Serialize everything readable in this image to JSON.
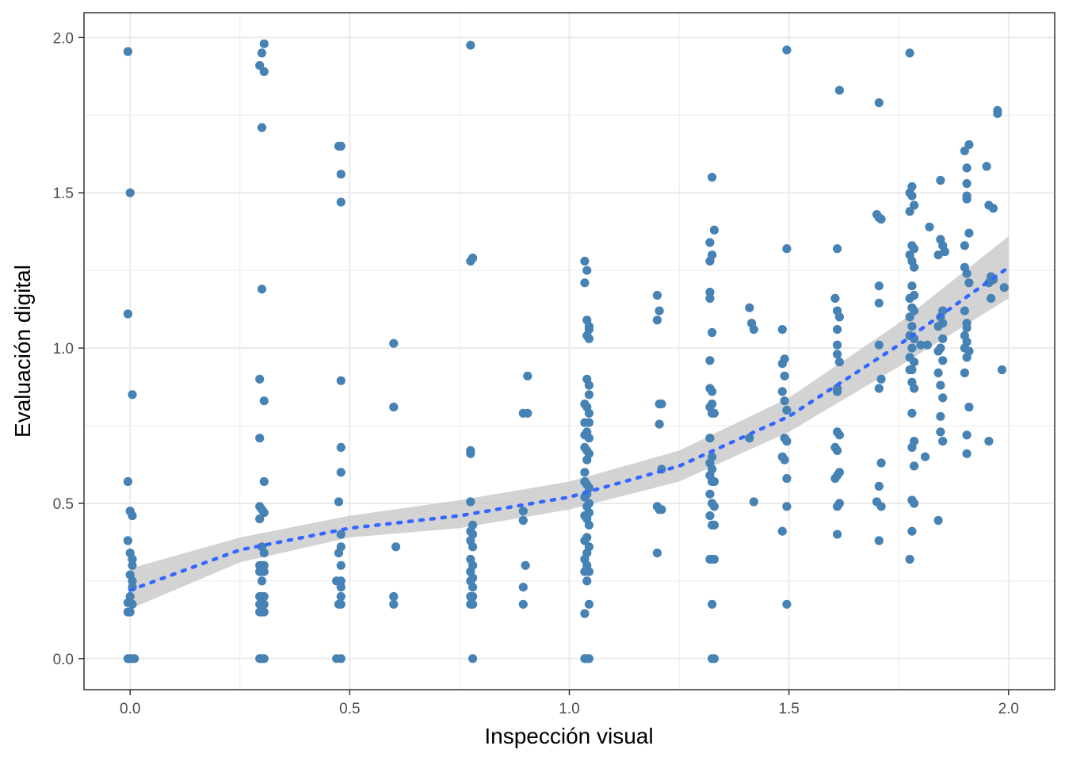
{
  "chart_data": {
    "type": "scatter",
    "xlabel": "Inspección visual",
    "ylabel": "Evaluación digital",
    "xlim": [
      -0.105,
      2.105
    ],
    "ylim": [
      -0.1,
      2.08
    ],
    "x_ticks": [
      "0.0",
      "0.5",
      "1.0",
      "1.5",
      "2.0"
    ],
    "y_ticks": [
      "0.0",
      "0.5",
      "1.0",
      "1.5",
      "2.0"
    ],
    "grid": true,
    "legend": "none",
    "colors": {
      "points": "#4682b4",
      "trend": "#3366ff",
      "band": "#c8c8c8",
      "grid": "#ebebeb",
      "frame": "#333333"
    },
    "trend": {
      "style": "dotted smooth",
      "x": [
        0.0,
        0.25,
        0.5,
        0.75,
        1.0,
        1.25,
        1.5,
        1.75,
        2.0
      ],
      "y": [
        0.22,
        0.35,
        0.42,
        0.46,
        0.52,
        0.62,
        0.78,
        1.01,
        1.26
      ],
      "lower": [
        0.16,
        0.31,
        0.39,
        0.42,
        0.48,
        0.57,
        0.73,
        0.94,
        1.16
      ],
      "upper": [
        0.29,
        0.39,
        0.46,
        0.51,
        0.57,
        0.67,
        0.84,
        1.08,
        1.36
      ]
    },
    "points": [
      [
        -0.005,
        1.955
      ],
      [
        0.0,
        1.5
      ],
      [
        -0.005,
        1.11
      ],
      [
        0.005,
        0.85
      ],
      [
        -0.005,
        0.57
      ],
      [
        0.0,
        0.475
      ],
      [
        0.005,
        0.46
      ],
      [
        -0.005,
        0.38
      ],
      [
        0.0,
        0.34
      ],
      [
        0.005,
        0.32
      ],
      [
        0.005,
        0.3
      ],
      [
        0.0,
        0.27
      ],
      [
        0.005,
        0.25
      ],
      [
        0.005,
        0.23
      ],
      [
        0.0,
        0.2
      ],
      [
        -0.005,
        0.18
      ],
      [
        0.005,
        0.175
      ],
      [
        0.0,
        0.15
      ],
      [
        -0.005,
        0.15
      ],
      [
        -0.005,
        0.0
      ],
      [
        0.0,
        0.0
      ],
      [
        0.005,
        0.0
      ],
      [
        0.01,
        0.0
      ],
      [
        0.305,
        1.98
      ],
      [
        0.3,
        1.95
      ],
      [
        0.295,
        1.91
      ],
      [
        0.305,
        1.89
      ],
      [
        0.3,
        1.71
      ],
      [
        0.3,
        1.19
      ],
      [
        0.295,
        0.9
      ],
      [
        0.305,
        0.83
      ],
      [
        0.295,
        0.71
      ],
      [
        0.305,
        0.57
      ],
      [
        0.295,
        0.49
      ],
      [
        0.3,
        0.48
      ],
      [
        0.305,
        0.47
      ],
      [
        0.295,
        0.45
      ],
      [
        0.3,
        0.36
      ],
      [
        0.305,
        0.34
      ],
      [
        0.295,
        0.3
      ],
      [
        0.3,
        0.3
      ],
      [
        0.305,
        0.3
      ],
      [
        0.295,
        0.28
      ],
      [
        0.3,
        0.28
      ],
      [
        0.305,
        0.28
      ],
      [
        0.3,
        0.25
      ],
      [
        0.295,
        0.2
      ],
      [
        0.3,
        0.2
      ],
      [
        0.305,
        0.2
      ],
      [
        0.295,
        0.175
      ],
      [
        0.3,
        0.175
      ],
      [
        0.305,
        0.175
      ],
      [
        0.295,
        0.15
      ],
      [
        0.3,
        0.15
      ],
      [
        0.305,
        0.15
      ],
      [
        0.295,
        0.0
      ],
      [
        0.3,
        0.0
      ],
      [
        0.305,
        0.0
      ],
      [
        0.475,
        1.65
      ],
      [
        0.48,
        1.65
      ],
      [
        0.48,
        1.56
      ],
      [
        0.48,
        1.47
      ],
      [
        0.48,
        0.895
      ],
      [
        0.48,
        0.68
      ],
      [
        0.48,
        0.6
      ],
      [
        0.475,
        0.505
      ],
      [
        0.48,
        0.4
      ],
      [
        0.48,
        0.36
      ],
      [
        0.475,
        0.34
      ],
      [
        0.48,
        0.3
      ],
      [
        0.47,
        0.25
      ],
      [
        0.48,
        0.25
      ],
      [
        0.48,
        0.23
      ],
      [
        0.48,
        0.2
      ],
      [
        0.475,
        0.175
      ],
      [
        0.48,
        0.175
      ],
      [
        0.47,
        0.0
      ],
      [
        0.48,
        0.0
      ],
      [
        0.6,
        1.015
      ],
      [
        0.6,
        0.81
      ],
      [
        0.605,
        0.36
      ],
      [
        0.6,
        0.2
      ],
      [
        0.6,
        0.175
      ],
      [
        0.775,
        1.975
      ],
      [
        0.78,
        1.29
      ],
      [
        0.775,
        1.28
      ],
      [
        0.775,
        0.67
      ],
      [
        0.775,
        0.66
      ],
      [
        0.775,
        0.505
      ],
      [
        0.78,
        0.43
      ],
      [
        0.775,
        0.41
      ],
      [
        0.78,
        0.4
      ],
      [
        0.775,
        0.38
      ],
      [
        0.78,
        0.36
      ],
      [
        0.775,
        0.32
      ],
      [
        0.78,
        0.3
      ],
      [
        0.775,
        0.28
      ],
      [
        0.78,
        0.26
      ],
      [
        0.775,
        0.25
      ],
      [
        0.78,
        0.23
      ],
      [
        0.775,
        0.2
      ],
      [
        0.78,
        0.2
      ],
      [
        0.775,
        0.175
      ],
      [
        0.78,
        0.175
      ],
      [
        0.78,
        0.0
      ],
      [
        0.905,
        0.91
      ],
      [
        0.895,
        0.79
      ],
      [
        0.905,
        0.79
      ],
      [
        0.895,
        0.475
      ],
      [
        0.895,
        0.445
      ],
      [
        0.9,
        0.3
      ],
      [
        0.895,
        0.23
      ],
      [
        0.895,
        0.175
      ],
      [
        1.035,
        1.28
      ],
      [
        1.04,
        1.25
      ],
      [
        1.035,
        1.21
      ],
      [
        1.04,
        1.09
      ],
      [
        1.045,
        1.07
      ],
      [
        1.045,
        1.06
      ],
      [
        1.04,
        1.04
      ],
      [
        1.045,
        1.03
      ],
      [
        1.04,
        0.9
      ],
      [
        1.045,
        0.88
      ],
      [
        1.045,
        0.85
      ],
      [
        1.035,
        0.82
      ],
      [
        1.04,
        0.81
      ],
      [
        1.045,
        0.79
      ],
      [
        1.035,
        0.76
      ],
      [
        1.045,
        0.76
      ],
      [
        1.04,
        0.73
      ],
      [
        1.035,
        0.72
      ],
      [
        1.045,
        0.71
      ],
      [
        1.035,
        0.68
      ],
      [
        1.04,
        0.67
      ],
      [
        1.045,
        0.66
      ],
      [
        1.04,
        0.64
      ],
      [
        1.035,
        0.6
      ],
      [
        1.035,
        0.57
      ],
      [
        1.04,
        0.56
      ],
      [
        1.045,
        0.55
      ],
      [
        1.04,
        0.53
      ],
      [
        1.035,
        0.52
      ],
      [
        1.045,
        0.5
      ],
      [
        1.04,
        0.49
      ],
      [
        1.045,
        0.47
      ],
      [
        1.035,
        0.46
      ],
      [
        1.04,
        0.45
      ],
      [
        1.045,
        0.43
      ],
      [
        1.04,
        0.39
      ],
      [
        1.035,
        0.38
      ],
      [
        1.045,
        0.36
      ],
      [
        1.04,
        0.34
      ],
      [
        1.035,
        0.32
      ],
      [
        1.04,
        0.3
      ],
      [
        1.035,
        0.28
      ],
      [
        1.045,
        0.28
      ],
      [
        1.04,
        0.25
      ],
      [
        1.045,
        0.175
      ],
      [
        1.035,
        0.145
      ],
      [
        1.035,
        0.0
      ],
      [
        1.04,
        0.0
      ],
      [
        1.045,
        0.0
      ],
      [
        1.2,
        1.17
      ],
      [
        1.205,
        1.12
      ],
      [
        1.2,
        1.09
      ],
      [
        1.205,
        0.82
      ],
      [
        1.21,
        0.82
      ],
      [
        1.205,
        0.755
      ],
      [
        1.21,
        0.61
      ],
      [
        1.2,
        0.49
      ],
      [
        1.205,
        0.48
      ],
      [
        1.21,
        0.48
      ],
      [
        1.2,
        0.34
      ],
      [
        1.325,
        1.55
      ],
      [
        1.33,
        1.38
      ],
      [
        1.32,
        1.34
      ],
      [
        1.325,
        1.3
      ],
      [
        1.32,
        1.28
      ],
      [
        1.32,
        1.18
      ],
      [
        1.32,
        1.16
      ],
      [
        1.325,
        1.05
      ],
      [
        1.32,
        0.96
      ],
      [
        1.32,
        0.87
      ],
      [
        1.325,
        0.86
      ],
      [
        1.325,
        0.82
      ],
      [
        1.32,
        0.81
      ],
      [
        1.33,
        0.79
      ],
      [
        1.325,
        0.79
      ],
      [
        1.32,
        0.71
      ],
      [
        1.325,
        0.65
      ],
      [
        1.32,
        0.63
      ],
      [
        1.325,
        0.61
      ],
      [
        1.32,
        0.59
      ],
      [
        1.325,
        0.57
      ],
      [
        1.33,
        0.57
      ],
      [
        1.32,
        0.53
      ],
      [
        1.325,
        0.5
      ],
      [
        1.33,
        0.49
      ],
      [
        1.32,
        0.46
      ],
      [
        1.325,
        0.43
      ],
      [
        1.33,
        0.43
      ],
      [
        1.32,
        0.32
      ],
      [
        1.325,
        0.32
      ],
      [
        1.33,
        0.32
      ],
      [
        1.325,
        0.175
      ],
      [
        1.325,
        0.0
      ],
      [
        1.33,
        0.0
      ],
      [
        1.41,
        1.13
      ],
      [
        1.415,
        1.08
      ],
      [
        1.42,
        1.06
      ],
      [
        1.41,
        0.71
      ],
      [
        1.42,
        0.505
      ],
      [
        1.485,
        1.06
      ],
      [
        1.49,
        0.965
      ],
      [
        1.485,
        0.95
      ],
      [
        1.49,
        0.91
      ],
      [
        1.485,
        0.86
      ],
      [
        1.49,
        0.83
      ],
      [
        1.495,
        0.8
      ],
      [
        1.49,
        0.71
      ],
      [
        1.495,
        0.7
      ],
      [
        1.485,
        0.65
      ],
      [
        1.49,
        0.64
      ],
      [
        1.495,
        0.58
      ],
      [
        1.495,
        0.49
      ],
      [
        1.485,
        0.41
      ],
      [
        1.495,
        0.175
      ],
      [
        1.495,
        1.96
      ],
      [
        1.495,
        1.32
      ],
      [
        1.615,
        1.83
      ],
      [
        1.61,
        1.32
      ],
      [
        1.605,
        1.16
      ],
      [
        1.61,
        1.12
      ],
      [
        1.615,
        1.1
      ],
      [
        1.61,
        1.06
      ],
      [
        1.61,
        1.01
      ],
      [
        1.61,
        0.98
      ],
      [
        1.615,
        0.955
      ],
      [
        1.61,
        0.87
      ],
      [
        1.61,
        0.86
      ],
      [
        1.61,
        0.73
      ],
      [
        1.615,
        0.72
      ],
      [
        1.605,
        0.68
      ],
      [
        1.61,
        0.67
      ],
      [
        1.615,
        0.6
      ],
      [
        1.61,
        0.59
      ],
      [
        1.605,
        0.58
      ],
      [
        1.615,
        0.5
      ],
      [
        1.61,
        0.49
      ],
      [
        1.61,
        0.4
      ],
      [
        1.705,
        1.79
      ],
      [
        1.7,
        1.43
      ],
      [
        1.705,
        1.42
      ],
      [
        1.71,
        1.415
      ],
      [
        1.705,
        1.2
      ],
      [
        1.705,
        1.145
      ],
      [
        1.705,
        1.01
      ],
      [
        1.71,
        0.9
      ],
      [
        1.705,
        0.87
      ],
      [
        1.71,
        0.63
      ],
      [
        1.705,
        0.555
      ],
      [
        1.7,
        0.505
      ],
      [
        1.71,
        0.49
      ],
      [
        1.705,
        0.38
      ],
      [
        1.775,
        1.95
      ],
      [
        1.78,
        1.52
      ],
      [
        1.775,
        1.5
      ],
      [
        1.78,
        1.49
      ],
      [
        1.785,
        1.46
      ],
      [
        1.775,
        1.44
      ],
      [
        1.78,
        1.33
      ],
      [
        1.785,
        1.32
      ],
      [
        1.775,
        1.3
      ],
      [
        1.78,
        1.28
      ],
      [
        1.785,
        1.26
      ],
      [
        1.78,
        1.2
      ],
      [
        1.785,
        1.17
      ],
      [
        1.775,
        1.16
      ],
      [
        1.78,
        1.13
      ],
      [
        1.785,
        1.12
      ],
      [
        1.775,
        1.1
      ],
      [
        1.78,
        1.07
      ],
      [
        1.775,
        1.04
      ],
      [
        1.785,
        1.03
      ],
      [
        1.78,
        1.0
      ],
      [
        1.775,
        0.97
      ],
      [
        1.785,
        0.955
      ],
      [
        1.78,
        0.93
      ],
      [
        1.775,
        0.93
      ],
      [
        1.78,
        0.89
      ],
      [
        1.785,
        0.87
      ],
      [
        1.78,
        0.79
      ],
      [
        1.785,
        0.7
      ],
      [
        1.78,
        0.68
      ],
      [
        1.785,
        0.62
      ],
      [
        1.78,
        0.51
      ],
      [
        1.785,
        0.5
      ],
      [
        1.78,
        0.41
      ],
      [
        1.775,
        0.32
      ],
      [
        1.8,
        1.01
      ],
      [
        1.815,
        1.01
      ],
      [
        1.82,
        1.39
      ],
      [
        1.81,
        0.65
      ],
      [
        1.845,
        1.54
      ],
      [
        1.845,
        1.35
      ],
      [
        1.85,
        1.33
      ],
      [
        1.84,
        1.3
      ],
      [
        1.855,
        1.31
      ],
      [
        1.85,
        1.12
      ],
      [
        1.845,
        1.1
      ],
      [
        1.85,
        1.08
      ],
      [
        1.84,
        1.07
      ],
      [
        1.85,
        1.03
      ],
      [
        1.845,
        1.0
      ],
      [
        1.84,
        0.99
      ],
      [
        1.85,
        0.96
      ],
      [
        1.84,
        0.92
      ],
      [
        1.845,
        0.88
      ],
      [
        1.85,
        0.84
      ],
      [
        1.845,
        0.78
      ],
      [
        1.845,
        0.73
      ],
      [
        1.85,
        0.7
      ],
      [
        1.84,
        0.445
      ],
      [
        1.91,
        1.655
      ],
      [
        1.9,
        1.635
      ],
      [
        1.905,
        1.58
      ],
      [
        1.905,
        1.53
      ],
      [
        1.905,
        1.49
      ],
      [
        1.905,
        1.48
      ],
      [
        1.91,
        1.37
      ],
      [
        1.9,
        1.33
      ],
      [
        1.9,
        1.26
      ],
      [
        1.905,
        1.24
      ],
      [
        1.91,
        1.21
      ],
      [
        1.9,
        1.12
      ],
      [
        1.905,
        1.08
      ],
      [
        1.905,
        1.065
      ],
      [
        1.9,
        1.04
      ],
      [
        1.905,
        1.02
      ],
      [
        1.9,
        1.0
      ],
      [
        1.91,
        0.99
      ],
      [
        1.905,
        0.97
      ],
      [
        1.9,
        0.92
      ],
      [
        1.91,
        0.81
      ],
      [
        1.905,
        0.72
      ],
      [
        1.905,
        0.66
      ],
      [
        1.95,
        1.585
      ],
      [
        1.955,
        1.46
      ],
      [
        1.965,
        1.45
      ],
      [
        1.96,
        1.23
      ],
      [
        1.965,
        1.22
      ],
      [
        1.955,
        1.21
      ],
      [
        1.96,
        1.16
      ],
      [
        1.955,
        0.7
      ],
      [
        1.975,
        1.765
      ],
      [
        1.975,
        1.755
      ],
      [
        1.99,
        1.195
      ],
      [
        1.985,
        0.93
      ]
    ]
  }
}
